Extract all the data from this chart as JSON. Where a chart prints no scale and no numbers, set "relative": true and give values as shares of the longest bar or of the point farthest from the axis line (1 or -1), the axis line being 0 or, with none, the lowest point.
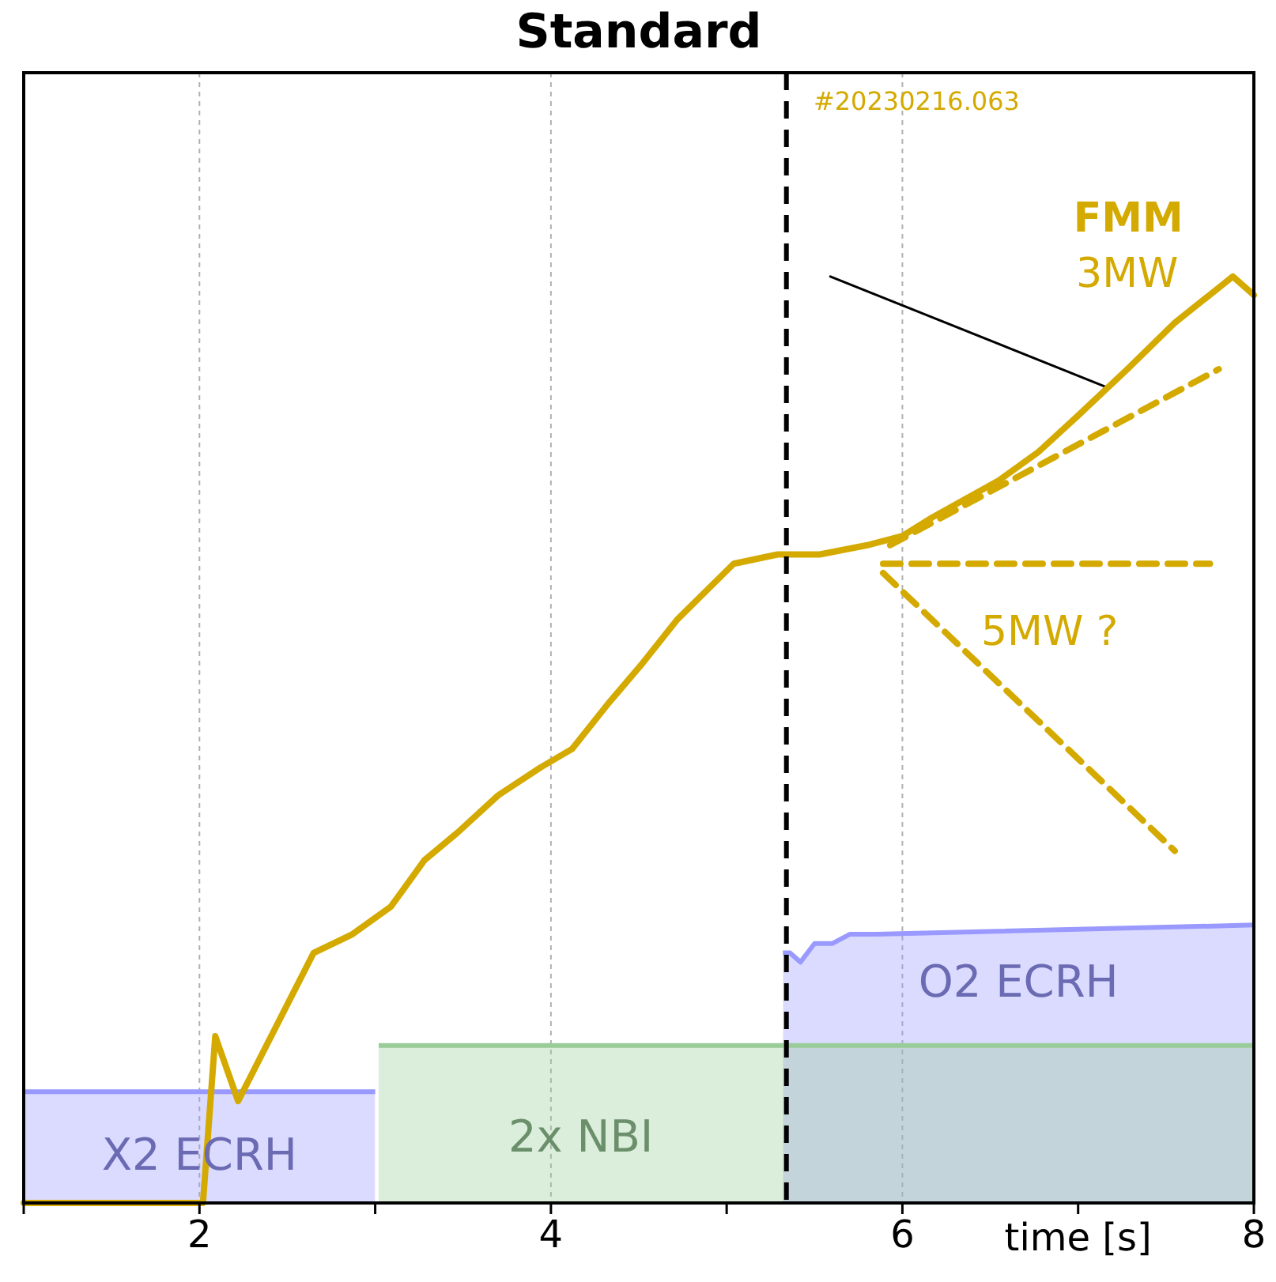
{
  "chart_data": {
    "type": "line",
    "title": "Standard",
    "xlabel": "time [s]",
    "relative": true,
    "legend": false,
    "grid": "x",
    "xlim": [
      1,
      8
    ],
    "xticks": [
      {
        "value": 1,
        "label": null
      },
      2,
      {
        "value": 3,
        "label": null
      },
      4,
      {
        "value": 5,
        "label": null
      },
      6,
      {
        "value": 7,
        "label": null
      },
      8
    ],
    "ref_lines": [
      {
        "axis": "x",
        "value": 5.34,
        "color": "#000000",
        "line_style": "dashed"
      }
    ],
    "annotations": [
      "#20230216.063",
      "3MW",
      "5MW ?"
    ],
    "series": [
      {
        "type": "area",
        "name": "O2 ECRH",
        "color": "#9999ff",
        "x": [
          5.32,
          5.36,
          5.42,
          5.5,
          5.6,
          5.7,
          5.85,
          8
        ],
        "values": [
          0.27,
          0.27,
          0.26,
          0.28,
          0.28,
          0.29,
          0.29,
          0.3
        ]
      },
      {
        "type": "area",
        "name": "X2 ECRH",
        "color": "#9999ff",
        "x": [
          1,
          3
        ],
        "values": [
          0.12,
          0.12
        ]
      },
      {
        "type": "area",
        "name": "2x NBI",
        "color": "#99cc99",
        "x": [
          3.02,
          8
        ],
        "values": [
          0.17,
          0.17
        ]
      },
      {
        "type": "line",
        "name": "FMM",
        "color": "#d4aa00",
        "x": [
          1,
          2.02,
          2.09,
          2.22,
          2.65,
          2.87,
          3.09,
          3.28,
          3.47,
          3.7,
          3.94,
          4.12,
          4.33,
          4.51,
          4.72,
          5.04,
          5.29,
          5.53,
          5.8,
          6,
          6.17,
          6.55,
          6.77,
          7,
          7.28,
          7.55,
          7.88,
          8
        ],
        "values": [
          0,
          0,
          0.18,
          0.11,
          0.27,
          0.29,
          0.32,
          0.37,
          0.4,
          0.44,
          0.47,
          0.49,
          0.54,
          0.58,
          0.63,
          0.69,
          0.7,
          0.7,
          0.71,
          0.72,
          0.74,
          0.78,
          0.81,
          0.85,
          0.9,
          0.95,
          1,
          0.98
        ]
      },
      {
        "type": "line",
        "color": "#d4aa00",
        "line_style": "dashed",
        "x": [
          5.93,
          7.8
        ],
        "values": [
          0.71,
          0.9
        ]
      },
      {
        "type": "line",
        "color": "#d4aa00",
        "line_style": "dashed",
        "x": [
          5.89,
          7.75
        ],
        "values": [
          0.69,
          0.69
        ]
      },
      {
        "type": "line",
        "color": "#d4aa00",
        "line_style": "dashed",
        "x": [
          5.89,
          7.55
        ],
        "values": [
          0.68,
          0.38
        ]
      },
      {
        "type": "line",
        "color": "#000000",
        "x": [
          5.59,
          7.17
        ],
        "values": [
          1.0,
          0.88
        ]
      }
    ]
  }
}
